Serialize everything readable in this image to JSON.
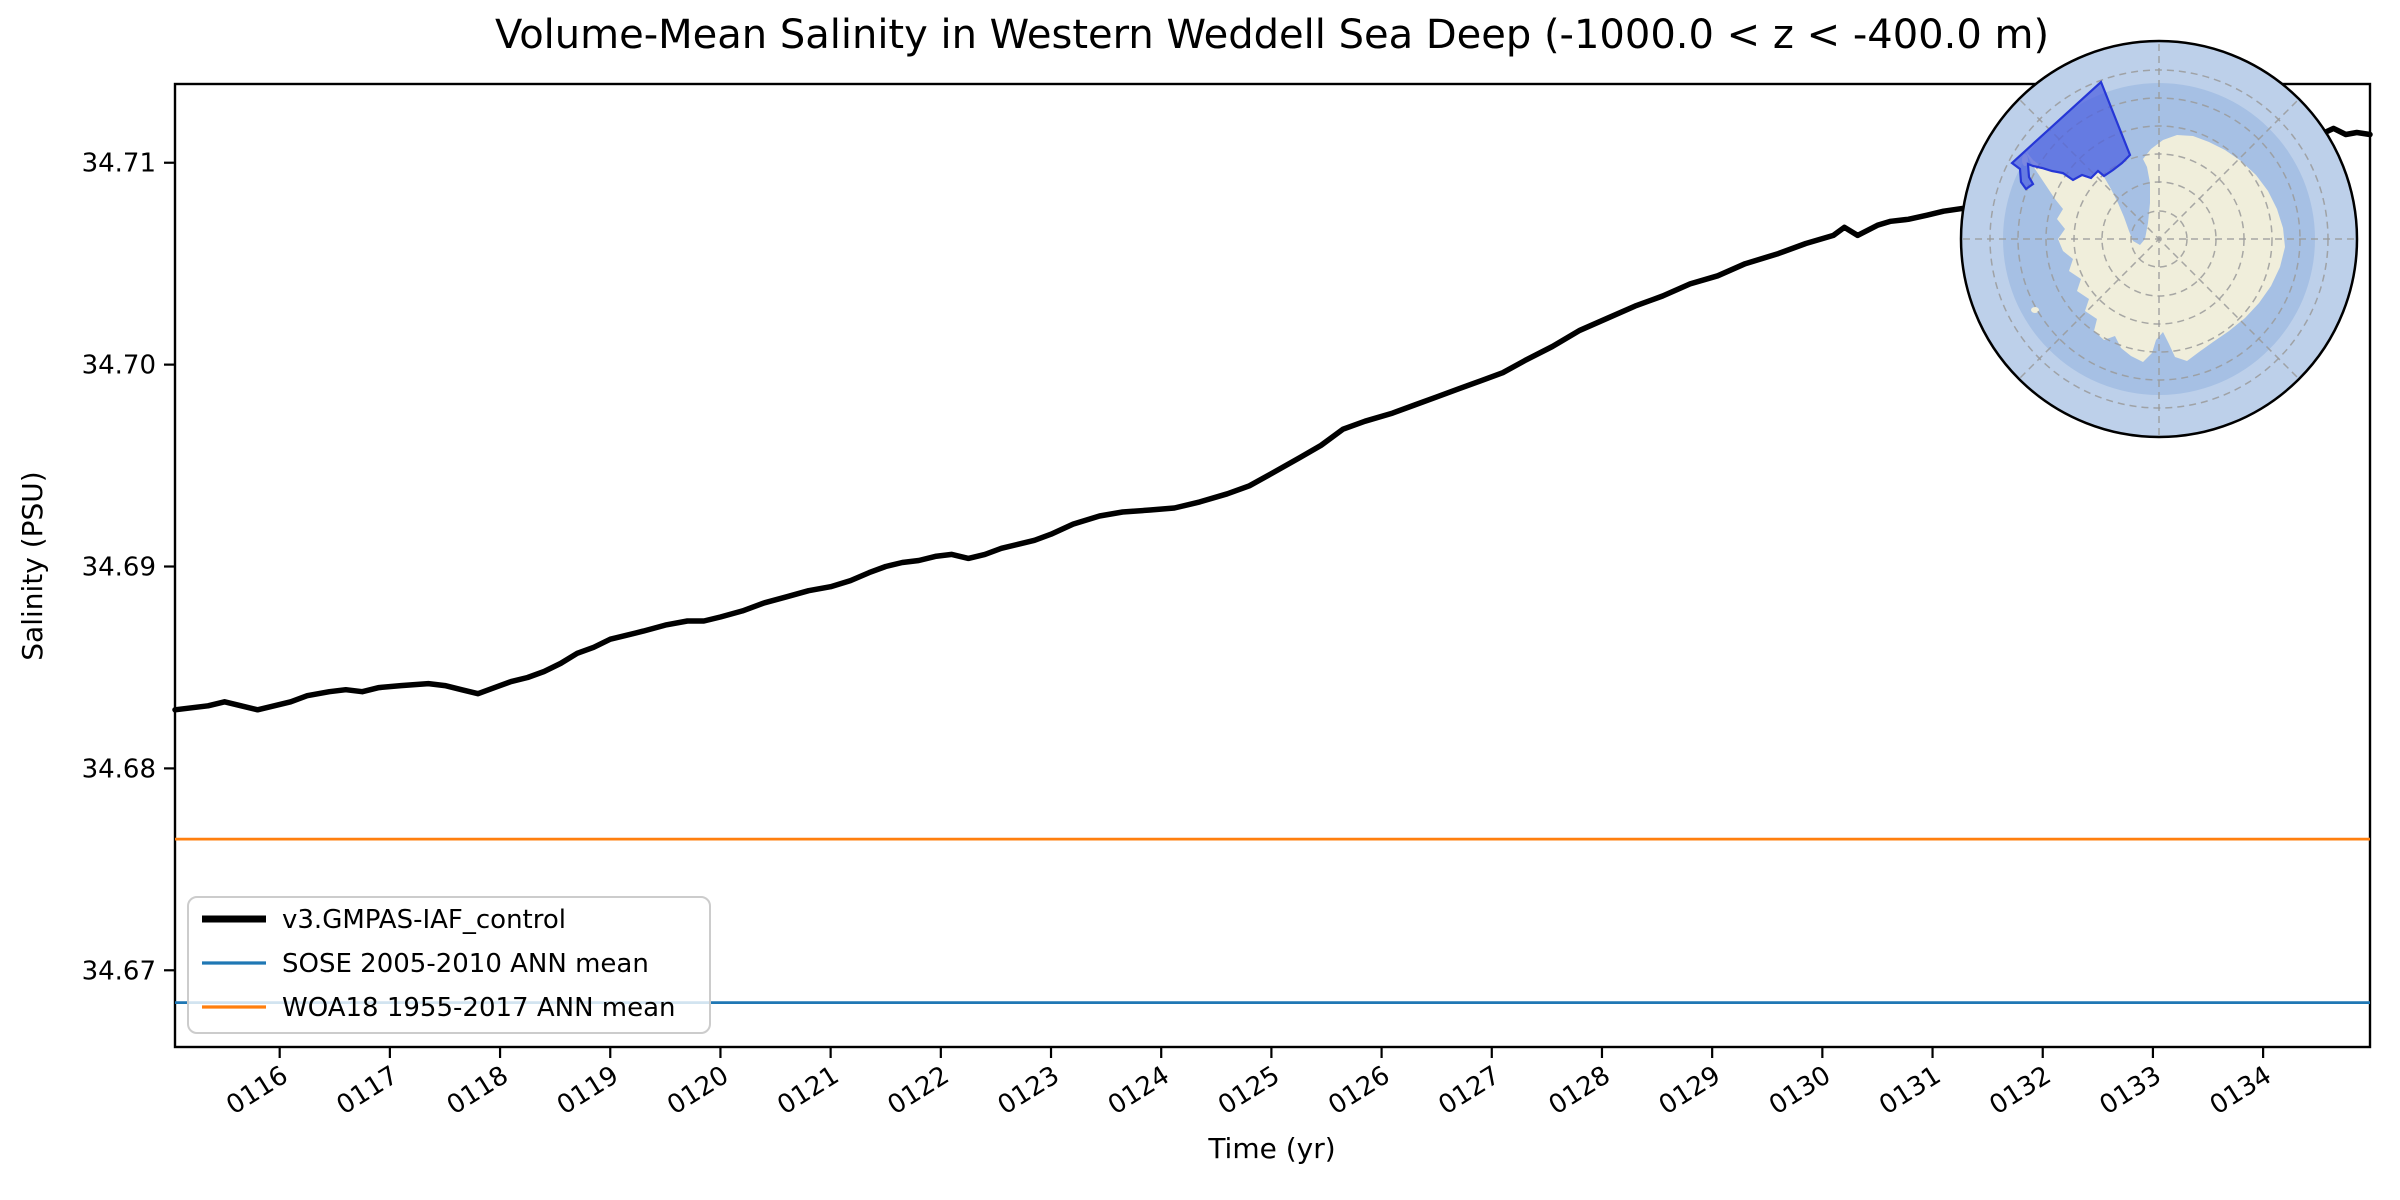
{
  "chart_data": {
    "type": "line",
    "title": "Volume-Mean Salinity in Western Weddell Sea Deep (-1000.0 < z < -400.0 m)",
    "xlabel": "Time (yr)",
    "ylabel": "Salinity (PSU)",
    "x_range": [
      115.05,
      134.97
    ],
    "y_range": [
      34.6662,
      34.7139
    ],
    "grid": "off",
    "legend_position": "lower left",
    "x_ticks": [
      {
        "label": "0116",
        "value": 116
      },
      {
        "label": "0117",
        "value": 117
      },
      {
        "label": "0118",
        "value": 118
      },
      {
        "label": "0119",
        "value": 119
      },
      {
        "label": "0120",
        "value": 120
      },
      {
        "label": "0121",
        "value": 121
      },
      {
        "label": "0122",
        "value": 122
      },
      {
        "label": "0123",
        "value": 123
      },
      {
        "label": "0124",
        "value": 124
      },
      {
        "label": "0125",
        "value": 125
      },
      {
        "label": "0126",
        "value": 126
      },
      {
        "label": "0127",
        "value": 127
      },
      {
        "label": "0128",
        "value": 128
      },
      {
        "label": "0129",
        "value": 129
      },
      {
        "label": "0130",
        "value": 130
      },
      {
        "label": "0131",
        "value": 131
      },
      {
        "label": "0132",
        "value": 132
      },
      {
        "label": "0133",
        "value": 133
      },
      {
        "label": "0134",
        "value": 134
      }
    ],
    "y_ticks": [
      {
        "label": "34.67",
        "value": 34.67
      },
      {
        "label": "34.68",
        "value": 34.68
      },
      {
        "label": "34.69",
        "value": 34.69
      },
      {
        "label": "34.70",
        "value": 34.7
      },
      {
        "label": "34.71",
        "value": 34.71
      }
    ],
    "series": [
      {
        "name": "v3.GMPAS-IAF_control",
        "type": "line",
        "color": "#000000",
        "linewidth": 5.5,
        "points": [
          [
            115.05,
            34.6829
          ],
          [
            115.2,
            34.683
          ],
          [
            115.35,
            34.6831
          ],
          [
            115.5,
            34.6833
          ],
          [
            115.65,
            34.6831
          ],
          [
            115.8,
            34.6829
          ],
          [
            115.95,
            34.6831
          ],
          [
            116.1,
            34.6833
          ],
          [
            116.25,
            34.6836
          ],
          [
            116.45,
            34.6838
          ],
          [
            116.6,
            34.6839
          ],
          [
            116.75,
            34.6838
          ],
          [
            116.9,
            34.684
          ],
          [
            117.1,
            34.6841
          ],
          [
            117.35,
            34.6842
          ],
          [
            117.5,
            34.6841
          ],
          [
            117.65,
            34.6839
          ],
          [
            117.8,
            34.6837
          ],
          [
            117.95,
            34.684
          ],
          [
            118.1,
            34.6843
          ],
          [
            118.25,
            34.6845
          ],
          [
            118.4,
            34.6848
          ],
          [
            118.55,
            34.6852
          ],
          [
            118.7,
            34.6857
          ],
          [
            118.85,
            34.686
          ],
          [
            119.0,
            34.6864
          ],
          [
            119.15,
            34.6866
          ],
          [
            119.3,
            34.6868
          ],
          [
            119.5,
            34.6871
          ],
          [
            119.7,
            34.6873
          ],
          [
            119.85,
            34.6873
          ],
          [
            120.0,
            34.6875
          ],
          [
            120.2,
            34.6878
          ],
          [
            120.4,
            34.6882
          ],
          [
            120.6,
            34.6885
          ],
          [
            120.8,
            34.6888
          ],
          [
            121.0,
            34.689
          ],
          [
            121.18,
            34.6893
          ],
          [
            121.35,
            34.6897
          ],
          [
            121.5,
            34.69
          ],
          [
            121.65,
            34.6902
          ],
          [
            121.8,
            34.6903
          ],
          [
            121.95,
            34.6905
          ],
          [
            122.1,
            34.6906
          ],
          [
            122.25,
            34.6904
          ],
          [
            122.4,
            34.6906
          ],
          [
            122.55,
            34.6909
          ],
          [
            122.7,
            34.6911
          ],
          [
            122.85,
            34.6913
          ],
          [
            123.0,
            34.6916
          ],
          [
            123.2,
            34.6921
          ],
          [
            123.44,
            34.6925
          ],
          [
            123.65,
            34.6927
          ],
          [
            123.9,
            34.6928
          ],
          [
            124.12,
            34.6929
          ],
          [
            124.35,
            34.6932
          ],
          [
            124.6,
            34.6936
          ],
          [
            124.8,
            34.694
          ],
          [
            125.0,
            34.6946
          ],
          [
            125.26,
            34.6954
          ],
          [
            125.45,
            34.696
          ],
          [
            125.65,
            34.6968
          ],
          [
            125.85,
            34.6972
          ],
          [
            126.1,
            34.6976
          ],
          [
            126.3,
            34.698
          ],
          [
            126.5,
            34.6984
          ],
          [
            126.7,
            34.6988
          ],
          [
            126.9,
            34.6992
          ],
          [
            127.1,
            34.6996
          ],
          [
            127.3,
            34.7002
          ],
          [
            127.55,
            34.7009
          ],
          [
            127.8,
            34.7017
          ],
          [
            128.05,
            34.7023
          ],
          [
            128.3,
            34.7029
          ],
          [
            128.55,
            34.7034
          ],
          [
            128.8,
            34.704
          ],
          [
            129.05,
            34.7044
          ],
          [
            129.3,
            34.705
          ],
          [
            129.6,
            34.7055
          ],
          [
            129.85,
            34.706
          ],
          [
            130.1,
            34.7064
          ],
          [
            130.2,
            34.7068
          ],
          [
            130.32,
            34.7064
          ],
          [
            130.5,
            34.7069
          ],
          [
            130.62,
            34.7071
          ],
          [
            130.78,
            34.7072
          ],
          [
            130.95,
            34.7074
          ],
          [
            131.1,
            34.7076
          ],
          [
            131.35,
            34.7078
          ],
          [
            131.6,
            34.7082
          ],
          [
            131.9,
            34.7088
          ],
          [
            132.2,
            34.7093
          ],
          [
            132.5,
            34.7098
          ],
          [
            132.8,
            34.7102
          ],
          [
            133.1,
            34.7105
          ],
          [
            133.4,
            34.7108
          ],
          [
            133.7,
            34.711
          ],
          [
            134.0,
            34.7112
          ],
          [
            134.2,
            34.7114
          ],
          [
            134.4,
            34.7116
          ],
          [
            134.52,
            34.7114
          ],
          [
            134.64,
            34.7117
          ],
          [
            134.75,
            34.7114
          ],
          [
            134.85,
            34.7115
          ],
          [
            134.97,
            34.7114
          ]
        ]
      },
      {
        "name": "SOSE 2005-2010 ANN mean",
        "type": "hline",
        "color": "#1f77b4",
        "linewidth": 2.8,
        "value": 34.6684
      },
      {
        "name": "WOA18 1955-2017 ANN mean",
        "type": "hline",
        "color": "#ff7f0e",
        "linewidth": 2.8,
        "value": 34.6765
      }
    ]
  },
  "inset_map": {
    "description": "antarctica-polar-stereographic-inset",
    "colors": {
      "ocean_outer": "#bdd0ea",
      "ocean_inner": "#a6c0e4",
      "land": "#f0eedb",
      "graticule": "#9a9a9a",
      "region_fill": "#4c5fe0",
      "region_edge": "#2637d6",
      "outline": "#000000"
    }
  }
}
